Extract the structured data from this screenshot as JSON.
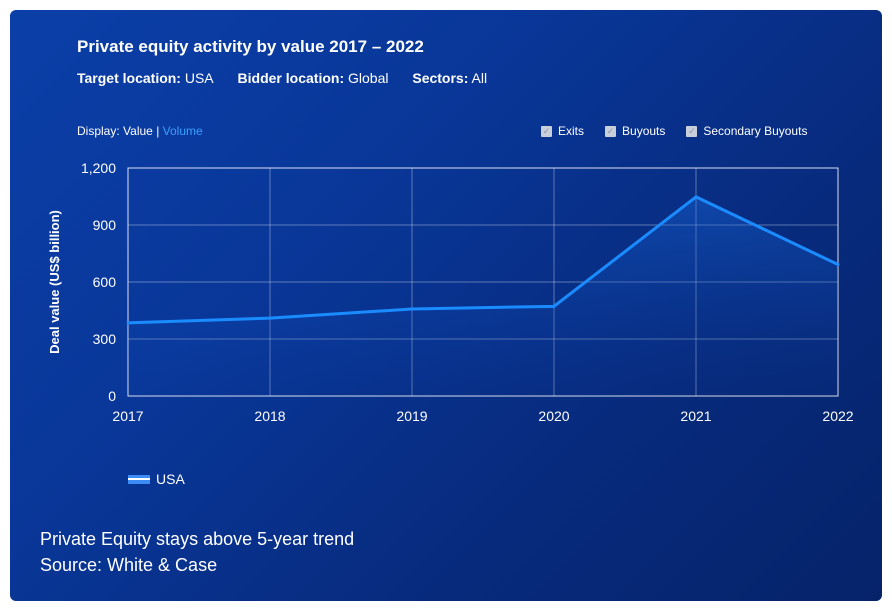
{
  "header": {
    "title": "Private equity activity by value 2017 – 2022",
    "filters": [
      {
        "label": "Target location:",
        "value": "USA"
      },
      {
        "label": "Bidder location:",
        "value": "Global"
      },
      {
        "label": "Sectors:",
        "value": "All"
      }
    ]
  },
  "display": {
    "prefix": "Display:",
    "current": "Value",
    "separator": "|",
    "alternate": "Volume",
    "link_color": "#3aa0ff"
  },
  "toggles": [
    {
      "label": "Exits",
      "checked": true
    },
    {
      "label": "Buyouts",
      "checked": true
    },
    {
      "label": "Secondary Buyouts",
      "checked": true
    }
  ],
  "chart_data": {
    "type": "area",
    "x": [
      "2017",
      "2018",
      "2019",
      "2020",
      "2021",
      "2022"
    ],
    "series": [
      {
        "name": "USA",
        "values": [
          385,
          410,
          458,
          472,
          1048,
          692
        ],
        "color": "#1a8cff"
      }
    ],
    "ylabel": "Deal value (US$ billion)",
    "xlabel": "",
    "ylim": [
      0,
      1200
    ],
    "yticks": [
      0,
      300,
      600,
      900,
      1200
    ],
    "ytick_labels": [
      "0",
      "300",
      "600",
      "900",
      "1,200"
    ],
    "grid": true,
    "legend_position": "bottom-left"
  },
  "legend": {
    "label": "USA"
  },
  "caption": {
    "line1": "Private Equity stays above 5-year trend",
    "line2": "Source: White & Case"
  },
  "colors": {
    "panel_background": "#0a3596",
    "line": "#1a8cff",
    "text": "#ffffff"
  }
}
